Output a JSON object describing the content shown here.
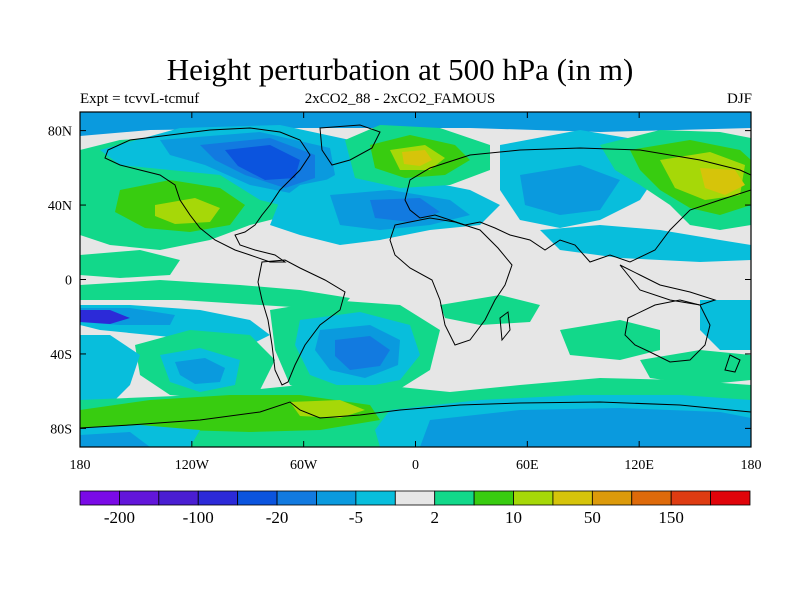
{
  "title": "Height perturbation at 500 hPa (in m)",
  "subtitle_left": "Expt = tcvvL-tcmuf",
  "subtitle_center": "2xCO2_88 - 2xCO2_FAMOUS",
  "subtitle_right": "DJF",
  "lat_ticks": [
    {
      "value": 80,
      "label": "80N"
    },
    {
      "value": 40,
      "label": "40N"
    },
    {
      "value": 0,
      "label": "0"
    },
    {
      "value": -40,
      "label": "40S"
    },
    {
      "value": -80,
      "label": "80S"
    }
  ],
  "lon_ticks": [
    {
      "value": -180,
      "label": "180"
    },
    {
      "value": -120,
      "label": "120W"
    },
    {
      "value": -60,
      "label": "60W"
    },
    {
      "value": 0,
      "label": "0"
    },
    {
      "value": 60,
      "label": "60E"
    },
    {
      "value": 120,
      "label": "120E"
    },
    {
      "value": 180,
      "label": "180"
    }
  ],
  "colorbar": {
    "colors": [
      "#7a0ae6",
      "#6216da",
      "#4a1ed2",
      "#2c2ad8",
      "#0b54de",
      "#127ae0",
      "#0a9ade",
      "#08bedc",
      "#e6e6e6",
      "#12d88a",
      "#38cc10",
      "#a6d808",
      "#d6c40a",
      "#dc9a0a",
      "#de6a0a",
      "#de3c12",
      "#e0040a"
    ],
    "labels": [
      {
        "slot": 1,
        "text": "-200"
      },
      {
        "slot": 3,
        "text": "-100"
      },
      {
        "slot": 5,
        "text": "-20"
      },
      {
        "slot": 7,
        "text": "-5"
      },
      {
        "slot": 9,
        "text": "2"
      },
      {
        "slot": 11,
        "text": "10"
      },
      {
        "slot": 13,
        "text": "50"
      },
      {
        "slot": 15,
        "text": "150"
      }
    ]
  }
}
